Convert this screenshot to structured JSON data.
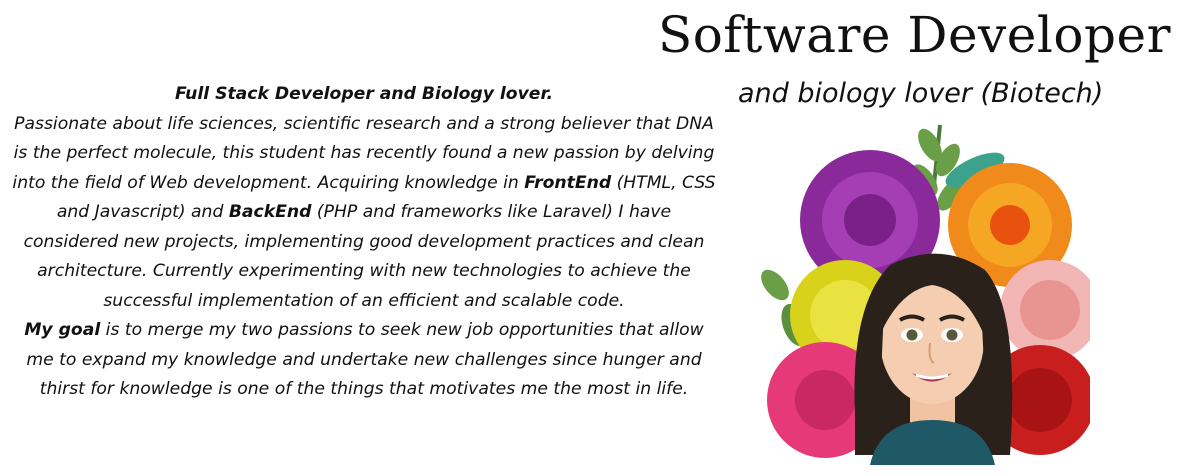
{
  "header": {
    "title": "Software Developer",
    "subtitle": "and biology lover (Biotech)"
  },
  "bio": {
    "heading": "Full Stack Developer and Biology lover.",
    "p1_a": "Passionate about life sciences, scientific research and a strong believer that DNA is the perfect molecule, this student has recently found a new passion by delving into the field of Web development. Acquiring knowledge in ",
    "frontend": "FrontEnd",
    "p1_b": " (HTML, CSS and Javascript) and ",
    "backend": "BackEnd",
    "p1_c": " (PHP and frameworks like Laravel) I have considered new projects, implementing good development practices and clean architecture. Currently experimenting with new technologies to achieve the successful implementation of an efficient and scalable code.",
    "goal_label": "My goal",
    "p2": " is to merge my two passions to seek new job opportunities that allow me to expand my knowledge and undertake new challenges since hunger and thirst for knowledge is one of the things that motivates me the most in life."
  },
  "illustration": {
    "icon": "avatar-with-flowers-illustration"
  }
}
